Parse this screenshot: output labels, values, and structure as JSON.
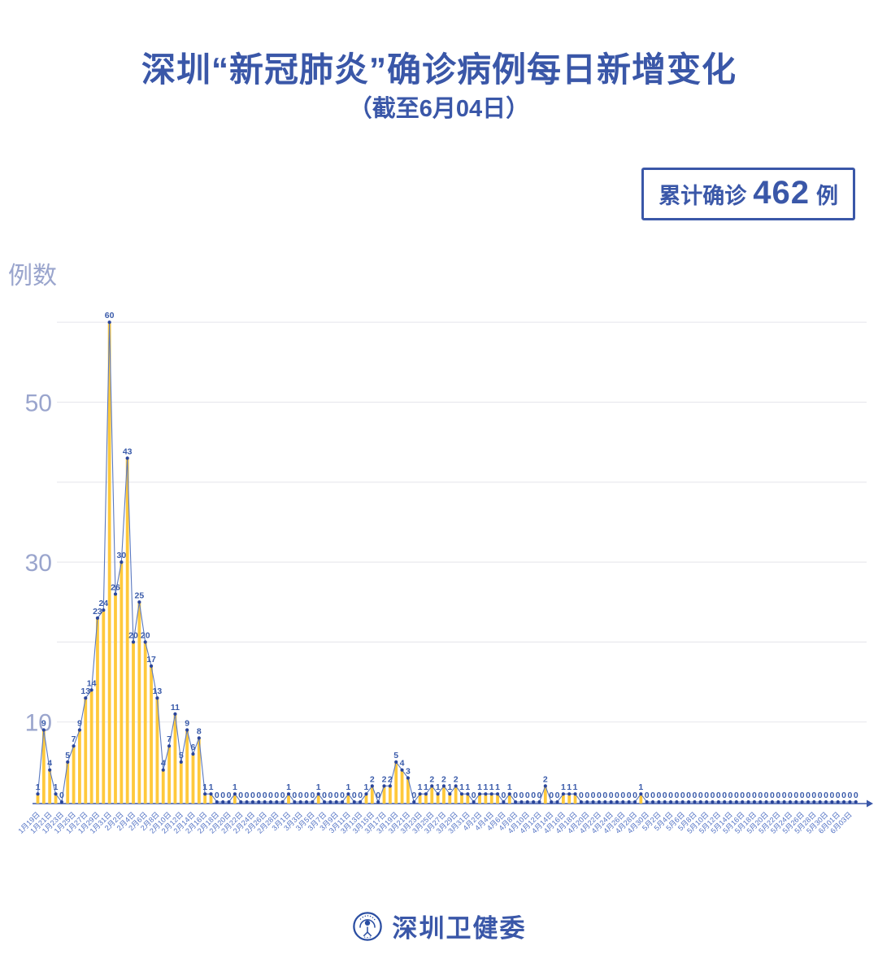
{
  "header": {
    "title": "深圳“新冠肺炎”确诊病例每日新增变化",
    "subtitle": "（截至6月04日）"
  },
  "summary_badge": {
    "label": "累计确诊",
    "value": "462",
    "unit": "例"
  },
  "footer": {
    "org_name": "深圳卫健委"
  },
  "colors": {
    "title_blue": "#3a57a8",
    "bar_yellow": "#ffc93c",
    "line_blue": "#5b79bf",
    "dot_navy": "#2a459b",
    "value_label_blue": "#3a5baa",
    "x_tick_blue": "#5272c4",
    "y_tick_gray_blue": "#9aa5cd",
    "gridline_gray": "#e9e9ee",
    "axis_blue": "#3a57a8"
  },
  "chart_data": {
    "type": "bar",
    "title": "深圳“新冠肺炎”确诊病例每日新增变化",
    "subtitle": "（截至6月04日）",
    "ylabel": "例数",
    "xlabel": "",
    "ylim": [
      0,
      62
    ],
    "y_ticks": [
      10,
      30,
      50
    ],
    "gridline_values": [
      10,
      20,
      30,
      40,
      50,
      60
    ],
    "grid": true,
    "point_labels_shown": true,
    "x_tick_step": 2,
    "x_tick_labels": [
      "1月19日",
      "1月21日",
      "1月23日",
      "1月25日",
      "1月27日",
      "1月29日",
      "1月31日",
      "2月2日",
      "2月4日",
      "2月6日",
      "2月8日",
      "2月10日",
      "2月12日",
      "2月14日",
      "2月16日",
      "2月18日",
      "2月20日",
      "2月22日",
      "2月24日",
      "2月26日",
      "2月28日",
      "3月1日",
      "3月3日",
      "3月5日",
      "3月7日",
      "3月9日",
      "3月11日",
      "3月13日",
      "3月15日",
      "3月17日",
      "3月19日",
      "3月21日",
      "3月23日",
      "3月25日",
      "3月27日",
      "3月29日",
      "3月31日",
      "4月2日",
      "4月4日",
      "4月6日",
      "4月8日",
      "4月10日",
      "4月12日",
      "4月14日",
      "4月16日",
      "4月18日",
      "4月20日",
      "4月22日",
      "4月24日",
      "4月26日",
      "4月28日",
      "4月30日",
      "5月2日",
      "5月4日",
      "5月6日",
      "5月8日",
      "5月10日",
      "5月12日",
      "5月14日",
      "5月16日",
      "5月18日",
      "5月20日",
      "5月22日",
      "5月24日",
      "5月26日",
      "5月28日",
      "5月30日",
      "6月01日",
      "6月03日"
    ],
    "values": [
      1,
      9,
      4,
      1,
      0,
      5,
      7,
      9,
      13,
      14,
      23,
      24,
      60,
      26,
      30,
      43,
      20,
      25,
      20,
      17,
      13,
      4,
      7,
      11,
      5,
      9,
      6,
      8,
      1,
      1,
      0,
      0,
      0,
      1,
      0,
      0,
      0,
      0,
      0,
      0,
      0,
      0,
      1,
      0,
      0,
      0,
      0,
      1,
      0,
      0,
      0,
      0,
      1,
      0,
      0,
      1,
      2,
      0,
      2,
      2,
      5,
      4,
      3,
      0,
      1,
      1,
      2,
      1,
      2,
      1,
      2,
      1,
      1,
      0,
      1,
      1,
      1,
      1,
      0,
      1,
      0,
      0,
      0,
      0,
      0,
      2,
      0,
      0,
      1,
      1,
      1,
      0,
      0,
      0,
      0,
      0,
      0,
      0,
      0,
      0,
      0,
      1,
      0,
      0,
      0,
      0,
      0,
      0,
      0,
      0,
      0,
      0,
      0,
      0,
      0,
      0,
      0,
      0,
      0,
      0,
      0,
      0,
      0,
      0,
      0,
      0,
      0,
      0,
      0,
      0,
      0,
      0,
      0,
      0,
      0,
      0,
      0,
      0
    ]
  }
}
